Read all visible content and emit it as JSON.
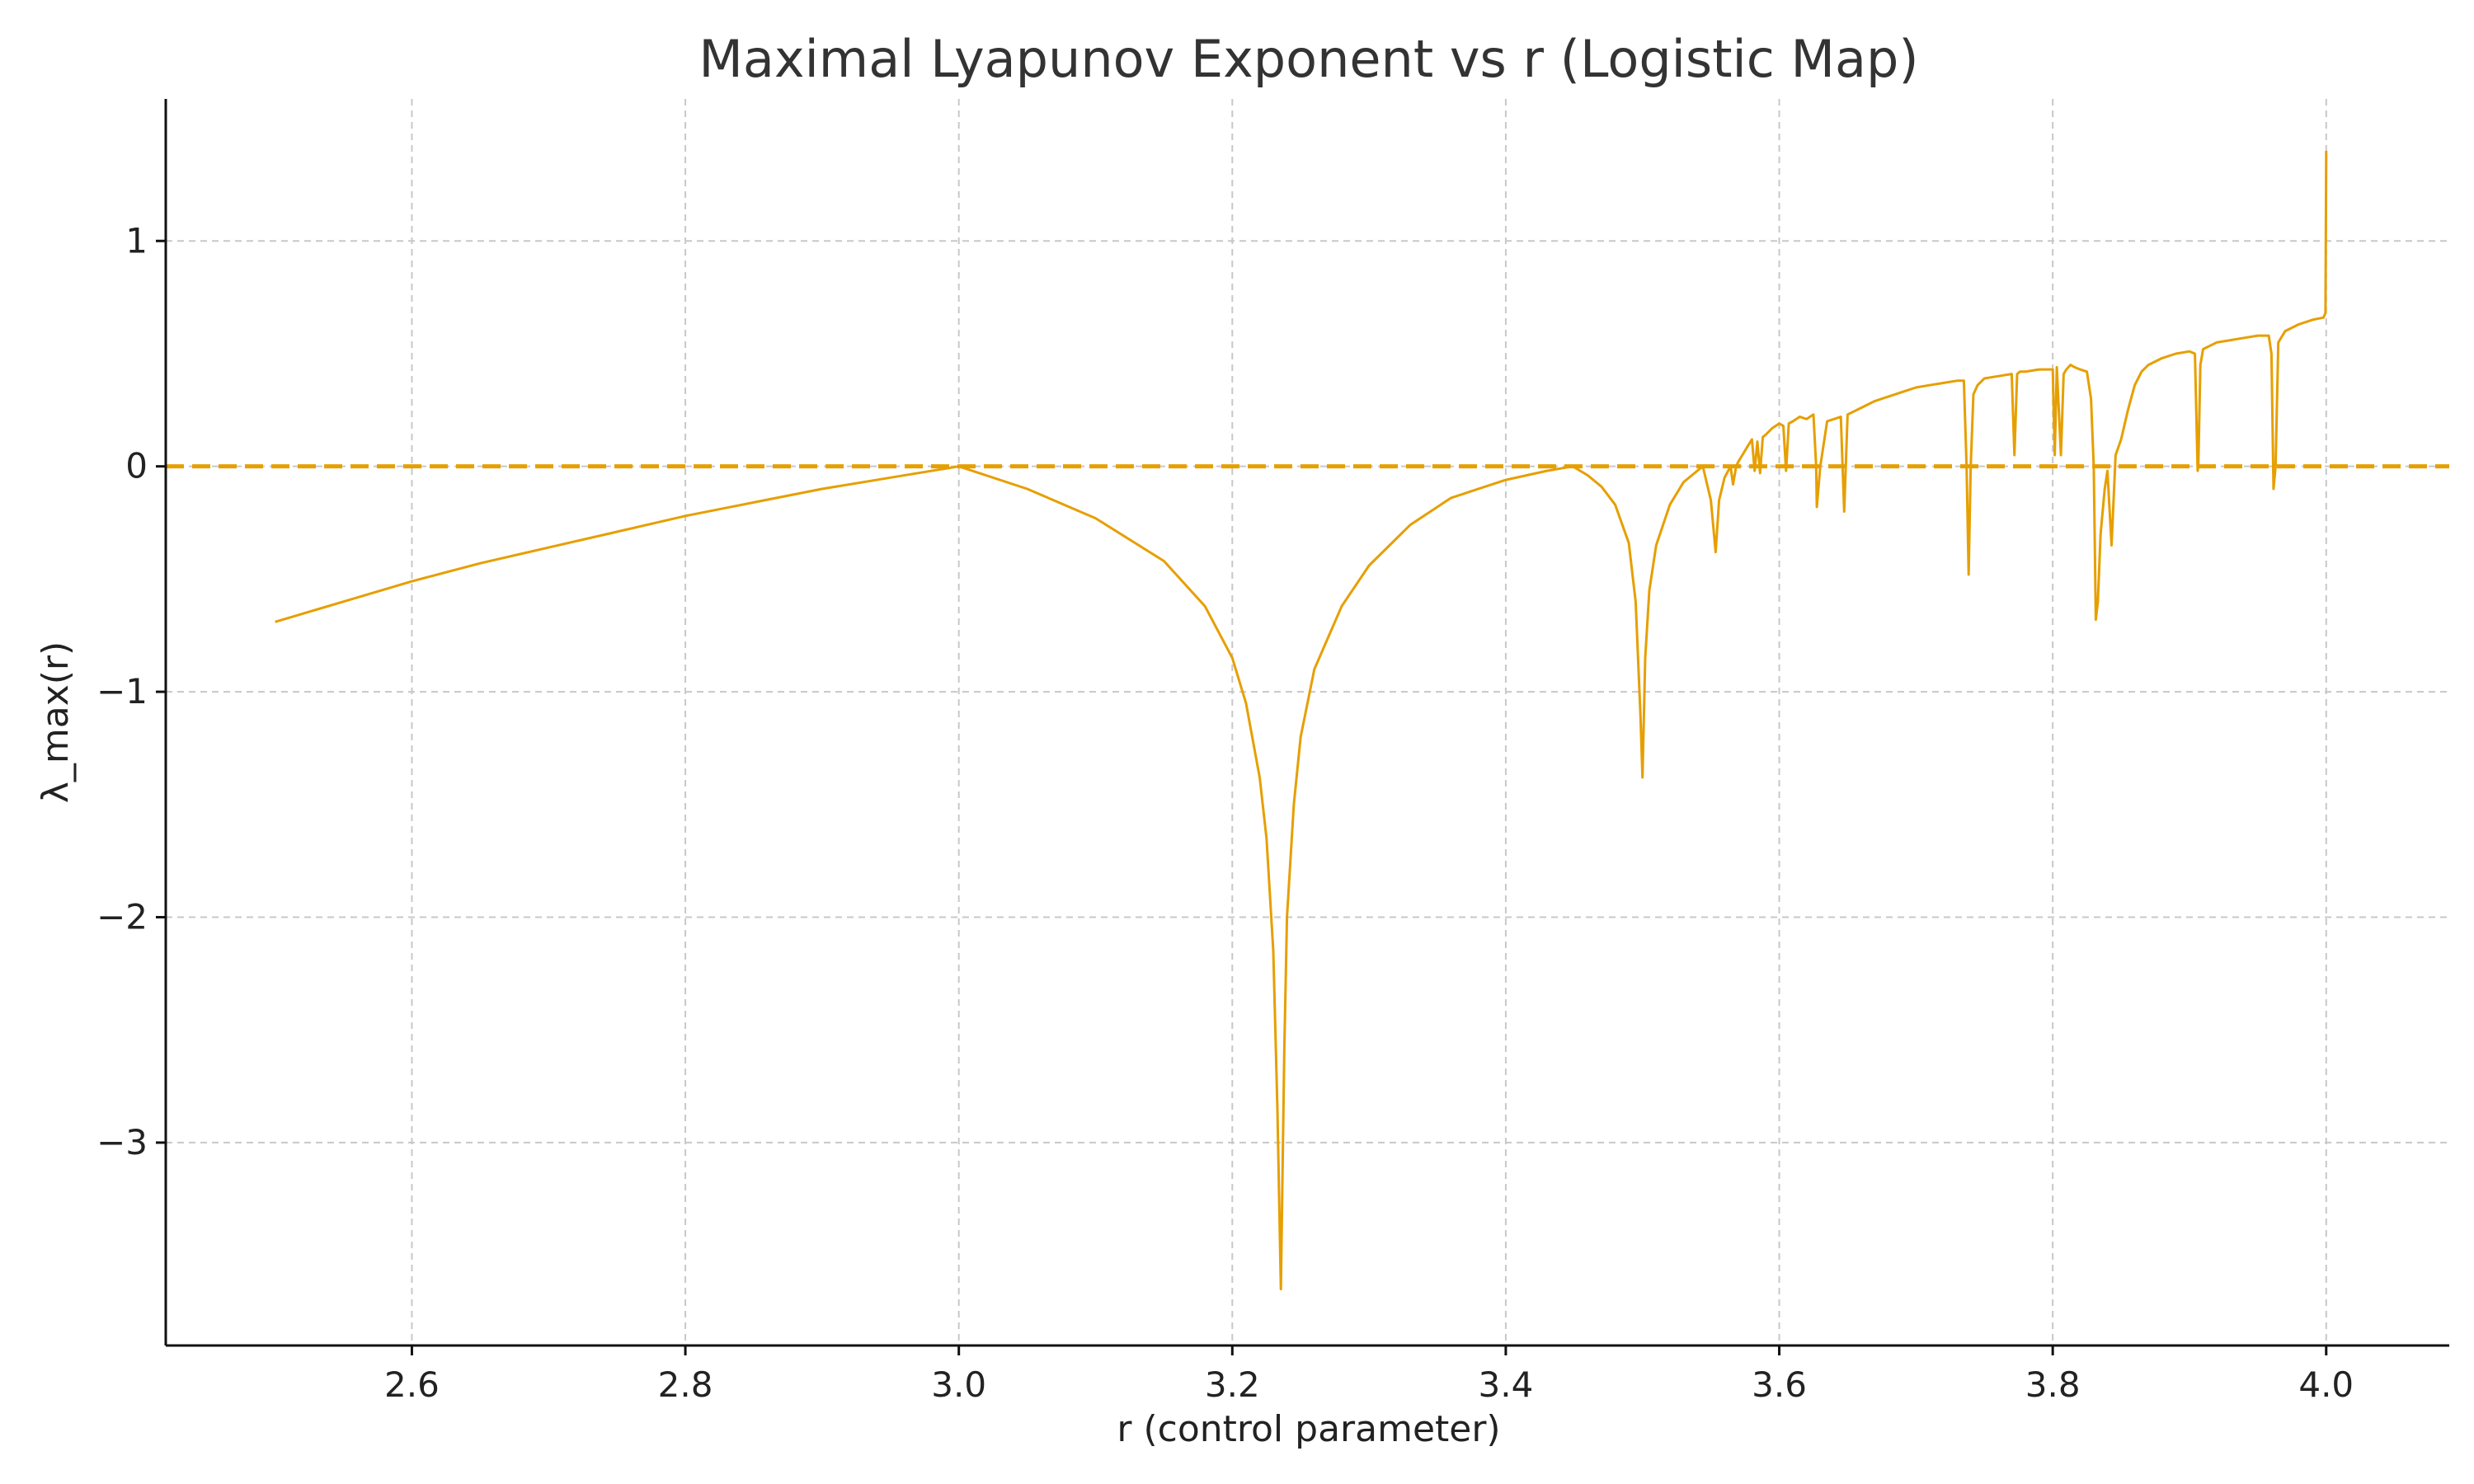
{
  "chart_data": {
    "type": "line",
    "title": "Maximal Lyapunov Exponent vs r (Logistic Map)",
    "xlabel": "r (control parameter)",
    "ylabel": "λ_max(r)",
    "xlim": [
      2.42,
      4.09
    ],
    "ylim": [
      -3.9,
      1.63
    ],
    "grid": true,
    "x_ticks": [
      2.6,
      2.8,
      3.0,
      3.2,
      3.4,
      3.6,
      3.8,
      4.0
    ],
    "x_tick_labels": [
      "2.6",
      "2.8",
      "3.0",
      "3.2",
      "3.4",
      "3.6",
      "3.8",
      "4.0"
    ],
    "y_ticks": [
      1,
      0,
      -1,
      -2,
      -3
    ],
    "y_tick_labels": [
      "1",
      "0",
      "−1",
      "−2",
      "−3"
    ],
    "series_color": "#E69F00",
    "reference_line": {
      "y": 0,
      "style": "dashed",
      "color": "#E69F00"
    },
    "series": [
      {
        "x": [
          2.5,
          2.55,
          2.6,
          2.65,
          2.7,
          2.75,
          2.8,
          2.85,
          2.9,
          2.95,
          3.0,
          3.05,
          3.1,
          3.15,
          3.18,
          3.2,
          3.21,
          3.22,
          3.225,
          3.23,
          3.233,
          3.2355,
          3.238,
          3.24,
          3.245,
          3.25,
          3.26,
          3.28,
          3.3,
          3.33,
          3.36,
          3.4,
          3.43,
          3.449,
          3.46,
          3.47,
          3.48,
          3.49,
          3.495,
          3.4985,
          3.5,
          3.502,
          3.505,
          3.51,
          3.52,
          3.53,
          3.54,
          3.5441,
          3.55,
          3.5535,
          3.556,
          3.56,
          3.5644,
          3.5662,
          3.5685,
          3.57,
          3.573,
          3.576,
          3.578,
          3.58,
          3.582,
          3.584,
          3.586,
          3.588,
          3.59,
          3.595,
          3.6,
          3.603,
          3.605,
          3.607,
          3.61,
          3.615,
          3.62,
          3.625,
          3.627,
          3.6275,
          3.63,
          3.635,
          3.64,
          3.645,
          3.6475,
          3.65,
          3.66,
          3.67,
          3.68,
          3.69,
          3.7,
          3.71,
          3.72,
          3.73,
          3.735,
          3.737,
          3.7385,
          3.74,
          3.742,
          3.745,
          3.75,
          3.76,
          3.77,
          3.772,
          3.774,
          3.776,
          3.78,
          3.79,
          3.8,
          3.8015,
          3.803,
          3.806,
          3.808,
          3.81,
          3.813,
          3.816,
          3.82,
          3.825,
          3.828,
          3.83,
          3.8315,
          3.833,
          3.835,
          3.838,
          3.84,
          3.843,
          3.846,
          3.85,
          3.855,
          3.86,
          3.865,
          3.87,
          3.88,
          3.89,
          3.9,
          3.904,
          3.906,
          3.9065,
          3.908,
          3.91,
          3.92,
          3.93,
          3.94,
          3.95,
          3.958,
          3.96,
          3.9615,
          3.963,
          3.965,
          3.97,
          3.98,
          3.99,
          3.998,
          3.9995,
          4.0
        ],
        "y": [
          -0.69,
          -0.6,
          -0.51,
          -0.43,
          -0.36,
          -0.29,
          -0.22,
          -0.16,
          -0.1,
          -0.05,
          0.0,
          -0.1,
          -0.23,
          -0.42,
          -0.62,
          -0.85,
          -1.05,
          -1.38,
          -1.65,
          -2.15,
          -2.85,
          -3.65,
          -2.6,
          -2.0,
          -1.5,
          -1.2,
          -0.9,
          -0.62,
          -0.44,
          -0.26,
          -0.14,
          -0.06,
          -0.02,
          0.0,
          -0.04,
          -0.09,
          -0.17,
          -0.34,
          -0.6,
          -1.1,
          -1.38,
          -0.85,
          -0.55,
          -0.35,
          -0.17,
          -0.07,
          -0.02,
          0.0,
          -0.15,
          -0.38,
          -0.15,
          -0.05,
          0.0,
          -0.08,
          0.0,
          0.02,
          0.05,
          0.08,
          0.1,
          0.12,
          -0.02,
          0.11,
          -0.03,
          0.13,
          0.14,
          0.17,
          0.19,
          0.18,
          -0.02,
          0.19,
          0.2,
          0.22,
          0.21,
          0.23,
          0.0,
          -0.18,
          0.0,
          0.2,
          0.21,
          0.22,
          -0.2,
          0.23,
          0.26,
          0.29,
          0.31,
          0.33,
          0.35,
          0.36,
          0.37,
          0.38,
          0.38,
          0.0,
          -0.48,
          0.0,
          0.32,
          0.36,
          0.39,
          0.4,
          0.41,
          0.05,
          0.41,
          0.42,
          0.42,
          0.43,
          0.43,
          0.05,
          0.44,
          0.05,
          0.41,
          0.43,
          0.45,
          0.44,
          0.43,
          0.42,
          0.3,
          0.0,
          -0.68,
          -0.6,
          -0.3,
          -0.1,
          -0.02,
          -0.35,
          0.05,
          0.12,
          0.25,
          0.36,
          0.42,
          0.45,
          0.48,
          0.5,
          0.51,
          0.5,
          -0.02,
          0.0,
          0.45,
          0.52,
          0.55,
          0.56,
          0.57,
          0.58,
          0.58,
          0.5,
          -0.1,
          0.0,
          0.55,
          0.6,
          0.63,
          0.65,
          0.66,
          0.68,
          1.4
        ]
      }
    ]
  }
}
